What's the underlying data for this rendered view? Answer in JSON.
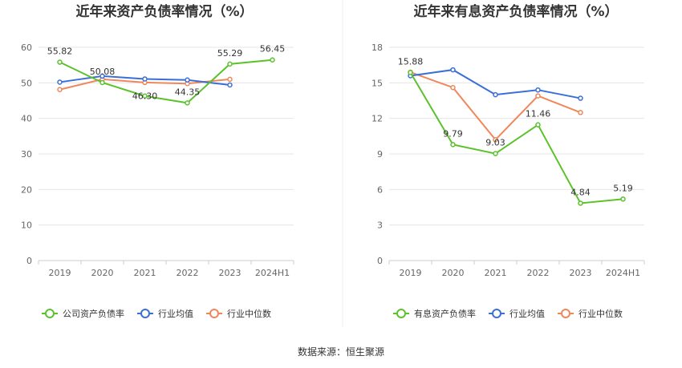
{
  "colors": {
    "company": "#5cc22c",
    "avg": "#3a6fd8",
    "median": "#f0875a"
  },
  "legend_left": [
    "公司资产负债率",
    "行业均值",
    "行业中位数"
  ],
  "legend_right": [
    "有息资产负债率",
    "行业均值",
    "行业中位数"
  ],
  "source": "数据来源：恒生聚源",
  "chart_data": [
    {
      "type": "line",
      "title": "近年来资产负债率情况（%）",
      "categories": [
        "2019",
        "2020",
        "2021",
        "2022",
        "2023",
        "2024H1"
      ],
      "ylim": [
        0,
        60
      ],
      "yticks": [
        "0",
        "10",
        "20",
        "30",
        "40",
        "50",
        "60"
      ],
      "series": [
        {
          "name": "公司资产负债率",
          "values": [
            55.82,
            50.08,
            46.3,
            44.35,
            55.29,
            56.45
          ]
        },
        {
          "name": "行业均值",
          "values": [
            50.2,
            51.9,
            51.1,
            50.8,
            49.4,
            null
          ]
        },
        {
          "name": "行业中位数",
          "values": [
            48.1,
            51.0,
            50.1,
            49.8,
            51.0,
            null
          ]
        }
      ],
      "labels": [
        "55.82",
        "50.08",
        "46.30",
        "44.35",
        "55.29",
        "56.45"
      ]
    },
    {
      "type": "line",
      "title": "近年来有息资产负债率情况（%）",
      "categories": [
        "2019",
        "2020",
        "2021",
        "2022",
        "2023",
        "2024H1"
      ],
      "ylim": [
        0,
        18
      ],
      "yticks": [
        "0",
        "3",
        "6",
        "9",
        "12",
        "15",
        "18"
      ],
      "series": [
        {
          "name": "有息资产负债率",
          "values": [
            15.88,
            9.79,
            9.03,
            11.46,
            4.84,
            5.19
          ]
        },
        {
          "name": "行业均值",
          "values": [
            15.6,
            16.1,
            14.0,
            14.4,
            13.7,
            null
          ]
        },
        {
          "name": "行业中位数",
          "values": [
            15.9,
            14.6,
            10.2,
            13.9,
            12.5,
            null
          ]
        }
      ],
      "labels": [
        "15.88",
        "9.79",
        "9.03",
        "11.46",
        "4.84",
        "5.19"
      ]
    }
  ]
}
